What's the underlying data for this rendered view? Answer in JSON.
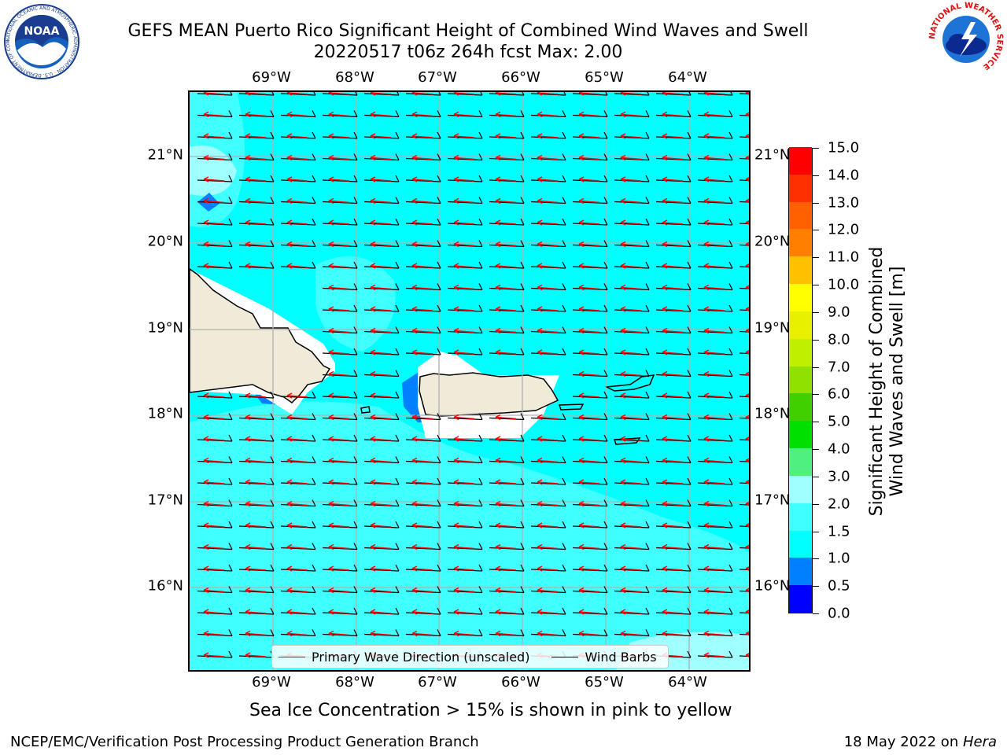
{
  "title_line1": "GEFS MEAN Puerto Rico Significant Height of Combined Wind Waves and Swell",
  "title_line2": "20220517 t06z 264h fcst   Max: 2.00",
  "lon_ticks": [
    "69°W",
    "68°W",
    "67°W",
    "66°W",
    "65°W",
    "64°W"
  ],
  "lat_ticks": [
    "21°N",
    "20°N",
    "19°N",
    "18°N",
    "17°N",
    "16°N"
  ],
  "legend": {
    "wave_dir": "Primary Wave Direction (unscaled)",
    "wind_barbs": "Wind Barbs",
    "wave_color": "#ff0000",
    "barb_color": "#000000"
  },
  "colorbar": {
    "title_line1": "Significant Height of Combined",
    "title_line2": "Wind Waves and Swell [m]",
    "labels": [
      "0.0",
      "0.5",
      "1.0",
      "1.5",
      "2.0",
      "3.0",
      "4.0",
      "5.0",
      "6.0",
      "7.0",
      "8.0",
      "9.0",
      "10.0",
      "11.0",
      "12.0",
      "13.0",
      "14.0",
      "15.0"
    ],
    "colors": [
      "#0000ff",
      "#0080ff",
      "#00ffff",
      "#40ffff",
      "#a0ffff",
      "#50f080",
      "#00e000",
      "#40d000",
      "#90e000",
      "#c0f000",
      "#e8f000",
      "#ffff00",
      "#ffc000",
      "#ff8000",
      "#ff6000",
      "#ff3000",
      "#ff0000"
    ]
  },
  "note": "Sea Ice Concentration > 15% is shown in pink to yellow",
  "footer_left": "NCEP/EMC/Verification Post Processing Product Generation Branch",
  "footer_right_prefix": "18 May 2022 on ",
  "footer_right_host": "Hera",
  "logos": {
    "noaa_text": "NOAA",
    "noaa_ring": "NATIONAL OCEANIC AND ATMOSPHERIC ADMINISTRATION · U.S. DEPARTMENT OF COMMERCE",
    "nws_ring": "NATIONAL WEATHER SERVICE"
  },
  "map_colors": {
    "sea_main": "#00ffff",
    "sea_light": "#40ffff",
    "sea_lighter": "#a0ffff",
    "sea_dark": "#0080ff",
    "land": "#efebd8"
  }
}
